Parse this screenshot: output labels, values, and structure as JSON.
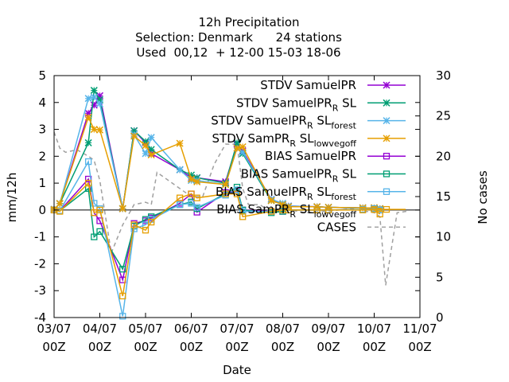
{
  "chart_data": {
    "type": "line",
    "title_lines": [
      "12h Precipitation",
      "Selection: Denmark      24 stations",
      "Used  00,12  + 12-00 15-03 18-06"
    ],
    "xlabel": "Date",
    "ylabel": "mm/12h",
    "y2label": "No cases",
    "xlim": [
      0,
      8
    ],
    "ylim": [
      -4,
      5
    ],
    "y2lim": [
      0,
      30
    ],
    "x_tick_values": [
      0,
      1,
      2,
      3,
      4,
      5,
      6,
      7,
      8
    ],
    "x_ticks": [
      [
        "03/07",
        "00Z"
      ],
      [
        "04/07",
        "00Z"
      ],
      [
        "05/07",
        "00Z"
      ],
      [
        "06/07",
        "00Z"
      ],
      [
        "07/07",
        "00Z"
      ],
      [
        "08/07",
        "00Z"
      ],
      [
        "09/07",
        "00Z"
      ],
      [
        "10/07",
        "00Z"
      ],
      [
        "11/07",
        "00Z"
      ]
    ],
    "y_ticks": [
      "-4",
      "-3",
      "-2",
      "-1",
      "0",
      "1",
      "2",
      "3",
      "4",
      "5"
    ],
    "y2_ticks": [
      "0",
      "5",
      "10",
      "15",
      "20",
      "25",
      "30"
    ],
    "x": [
      0,
      0.125,
      0.75,
      0.875,
      1.0,
      1.5,
      1.75,
      2.0,
      2.125,
      2.75,
      3.0,
      3.125,
      3.75,
      4.0,
      4.125,
      4.75,
      5.0,
      5.125,
      5.75,
      6.0,
      6.75,
      7.0,
      7.125
    ],
    "series": [
      {
        "name": "STDV SamuelPR",
        "color": "#9400d3",
        "marker": "x",
        "values": [
          0.02,
          0.24,
          3.6,
          3.9,
          4.25,
          0.05,
          2.95,
          2.5,
          2.1,
          1.5,
          1.2,
          1.2,
          1.05,
          2.45,
          2.2,
          0.4,
          0.2,
          0.15,
          0.12,
          0.1,
          0.08,
          0.08,
          0.05
        ]
      },
      {
        "name": "STDV SamuelPR_R SL",
        "color": "#009e73",
        "marker": "x",
        "values": [
          0.02,
          0.24,
          2.5,
          4.45,
          4.1,
          0.05,
          2.95,
          2.55,
          2.25,
          1.5,
          1.3,
          1.2,
          1.0,
          2.5,
          2.1,
          0.35,
          0.2,
          0.12,
          0.12,
          0.1,
          0.08,
          0.08,
          0.05
        ]
      },
      {
        "name": "STDV SamuelPR_R SL_forest",
        "color": "#56b4e9",
        "marker": "x",
        "values": [
          0.02,
          0.24,
          4.15,
          4.2,
          3.95,
          0.05,
          2.8,
          2.1,
          2.7,
          1.5,
          1.1,
          1.1,
          0.95,
          2.3,
          2.15,
          0.4,
          0.25,
          0.15,
          0.12,
          0.1,
          0.08,
          0.08,
          0.05
        ]
      },
      {
        "name": "STDV SamPR_R SL_lowvegoff",
        "color": "#e69f00",
        "marker": "x",
        "values": [
          0.02,
          0.24,
          3.45,
          3.0,
          2.98,
          0.05,
          2.75,
          2.4,
          2.05,
          2.48,
          1.15,
          1.05,
          0.95,
          2.3,
          2.35,
          0.35,
          0.2,
          0.12,
          0.12,
          0.1,
          0.08,
          0.08,
          0.05
        ]
      },
      {
        "name": "BIAS SamuelPR",
        "color": "#9400d3",
        "marker": "square",
        "values": [
          0.0,
          -0.03,
          1.15,
          -0.1,
          -0.4,
          -2.6,
          -0.5,
          -0.4,
          -0.3,
          0.25,
          0.6,
          -0.08,
          0.65,
          0.7,
          0.0,
          -0.05,
          -0.05,
          0.0,
          0.0,
          0.0,
          0.02,
          0.05,
          0.0
        ]
      },
      {
        "name": "BIAS SamuelPR_R SL",
        "color": "#009e73",
        "marker": "square",
        "values": [
          0.0,
          -0.03,
          0.8,
          -1.0,
          -0.8,
          -2.2,
          -0.6,
          -0.35,
          -0.25,
          0.2,
          0.3,
          0.05,
          0.6,
          0.85,
          0.0,
          -0.1,
          -0.05,
          0.0,
          0.0,
          0.0,
          0.02,
          0.05,
          0.0
        ]
      },
      {
        "name": "BIAS SamuelPR_R SL_forest",
        "color": "#56b4e9",
        "marker": "square",
        "values": [
          0.0,
          -0.03,
          1.8,
          0.25,
          0.05,
          -3.95,
          -0.7,
          -0.55,
          -0.35,
          0.2,
          0.25,
          0.1,
          0.55,
          0.75,
          -0.05,
          -0.05,
          0.0,
          0.0,
          0.0,
          0.0,
          0.02,
          0.05,
          0.0
        ]
      },
      {
        "name": "BIAS SamPR_R SL_lowvegoff",
        "color": "#e69f00",
        "marker": "square",
        "values": [
          0.0,
          -0.05,
          1.0,
          -0.1,
          0.0,
          -3.2,
          -0.55,
          -0.75,
          -0.45,
          0.45,
          0.6,
          0.45,
          0.6,
          0.6,
          -0.25,
          -0.05,
          0.0,
          0.0,
          0.0,
          0.0,
          0.0,
          0.02,
          -0.15
        ]
      }
    ],
    "cases": {
      "name": "CASES",
      "color": "#a0a0a0",
      "style": "dashed",
      "x": [
        0,
        0.125,
        0.25,
        0.5,
        0.75,
        0.875,
        1.0,
        1.25,
        1.5,
        1.75,
        2.0,
        2.125,
        2.25,
        2.5,
        2.75,
        3.0,
        3.25,
        3.5,
        3.75,
        4.0,
        4.125,
        4.25,
        4.5,
        4.75,
        5.0,
        5.5,
        6.0,
        6.5,
        7.0,
        7.125,
        7.25,
        7.5,
        7.75
      ],
      "values": [
        23,
        21,
        20.5,
        20.8,
        20,
        19.5,
        17,
        8,
        11.5,
        14,
        14.3,
        14,
        18,
        17,
        16,
        15,
        15,
        19,
        21.5,
        21.5,
        16,
        14,
        14,
        13,
        13.5,
        13,
        13.2,
        13.5,
        13,
        12.5,
        4,
        13,
        13.2
      ]
    }
  }
}
